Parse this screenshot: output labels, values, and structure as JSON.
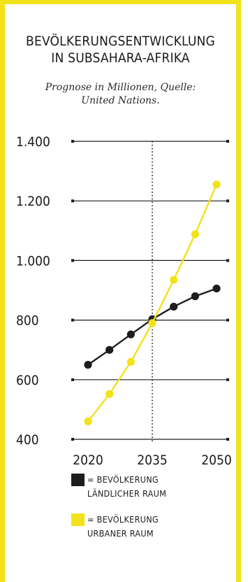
{
  "chart_data": {
    "type": "line",
    "title": [
      "BEVÖLKERUNGSENTWICKLUNG",
      "IN SUBSAHARA-AFRIKA"
    ],
    "subtitle": [
      "Prognose in Millionen, Quelle:",
      "United Nations."
    ],
    "x": [
      2020,
      2025,
      2030,
      2035,
      2040,
      2045,
      2050
    ],
    "xticks": [
      "2020",
      "2035",
      "2050"
    ],
    "yticks": [
      "400",
      "600",
      "800",
      "1.000",
      "1.200",
      "1.400"
    ],
    "ylim": [
      400,
      1400
    ],
    "xlim": [
      2020,
      2050
    ],
    "reference_line_x": 2035,
    "grid": "horizontal",
    "legend_position": "bottom",
    "series": [
      {
        "name": [
          "= BEVÖLKERUNG",
          "LÄNDLICHER RAUM"
        ],
        "color": "#1d1d1d",
        "values": [
          650,
          700,
          752,
          803,
          845,
          880,
          906
        ]
      },
      {
        "name": [
          "= BEVÖLKERUNG",
          "URBANER RAUM"
        ],
        "color": "#f2e21a",
        "values": [
          460,
          552,
          660,
          790,
          935,
          1088,
          1255
        ]
      }
    ]
  }
}
